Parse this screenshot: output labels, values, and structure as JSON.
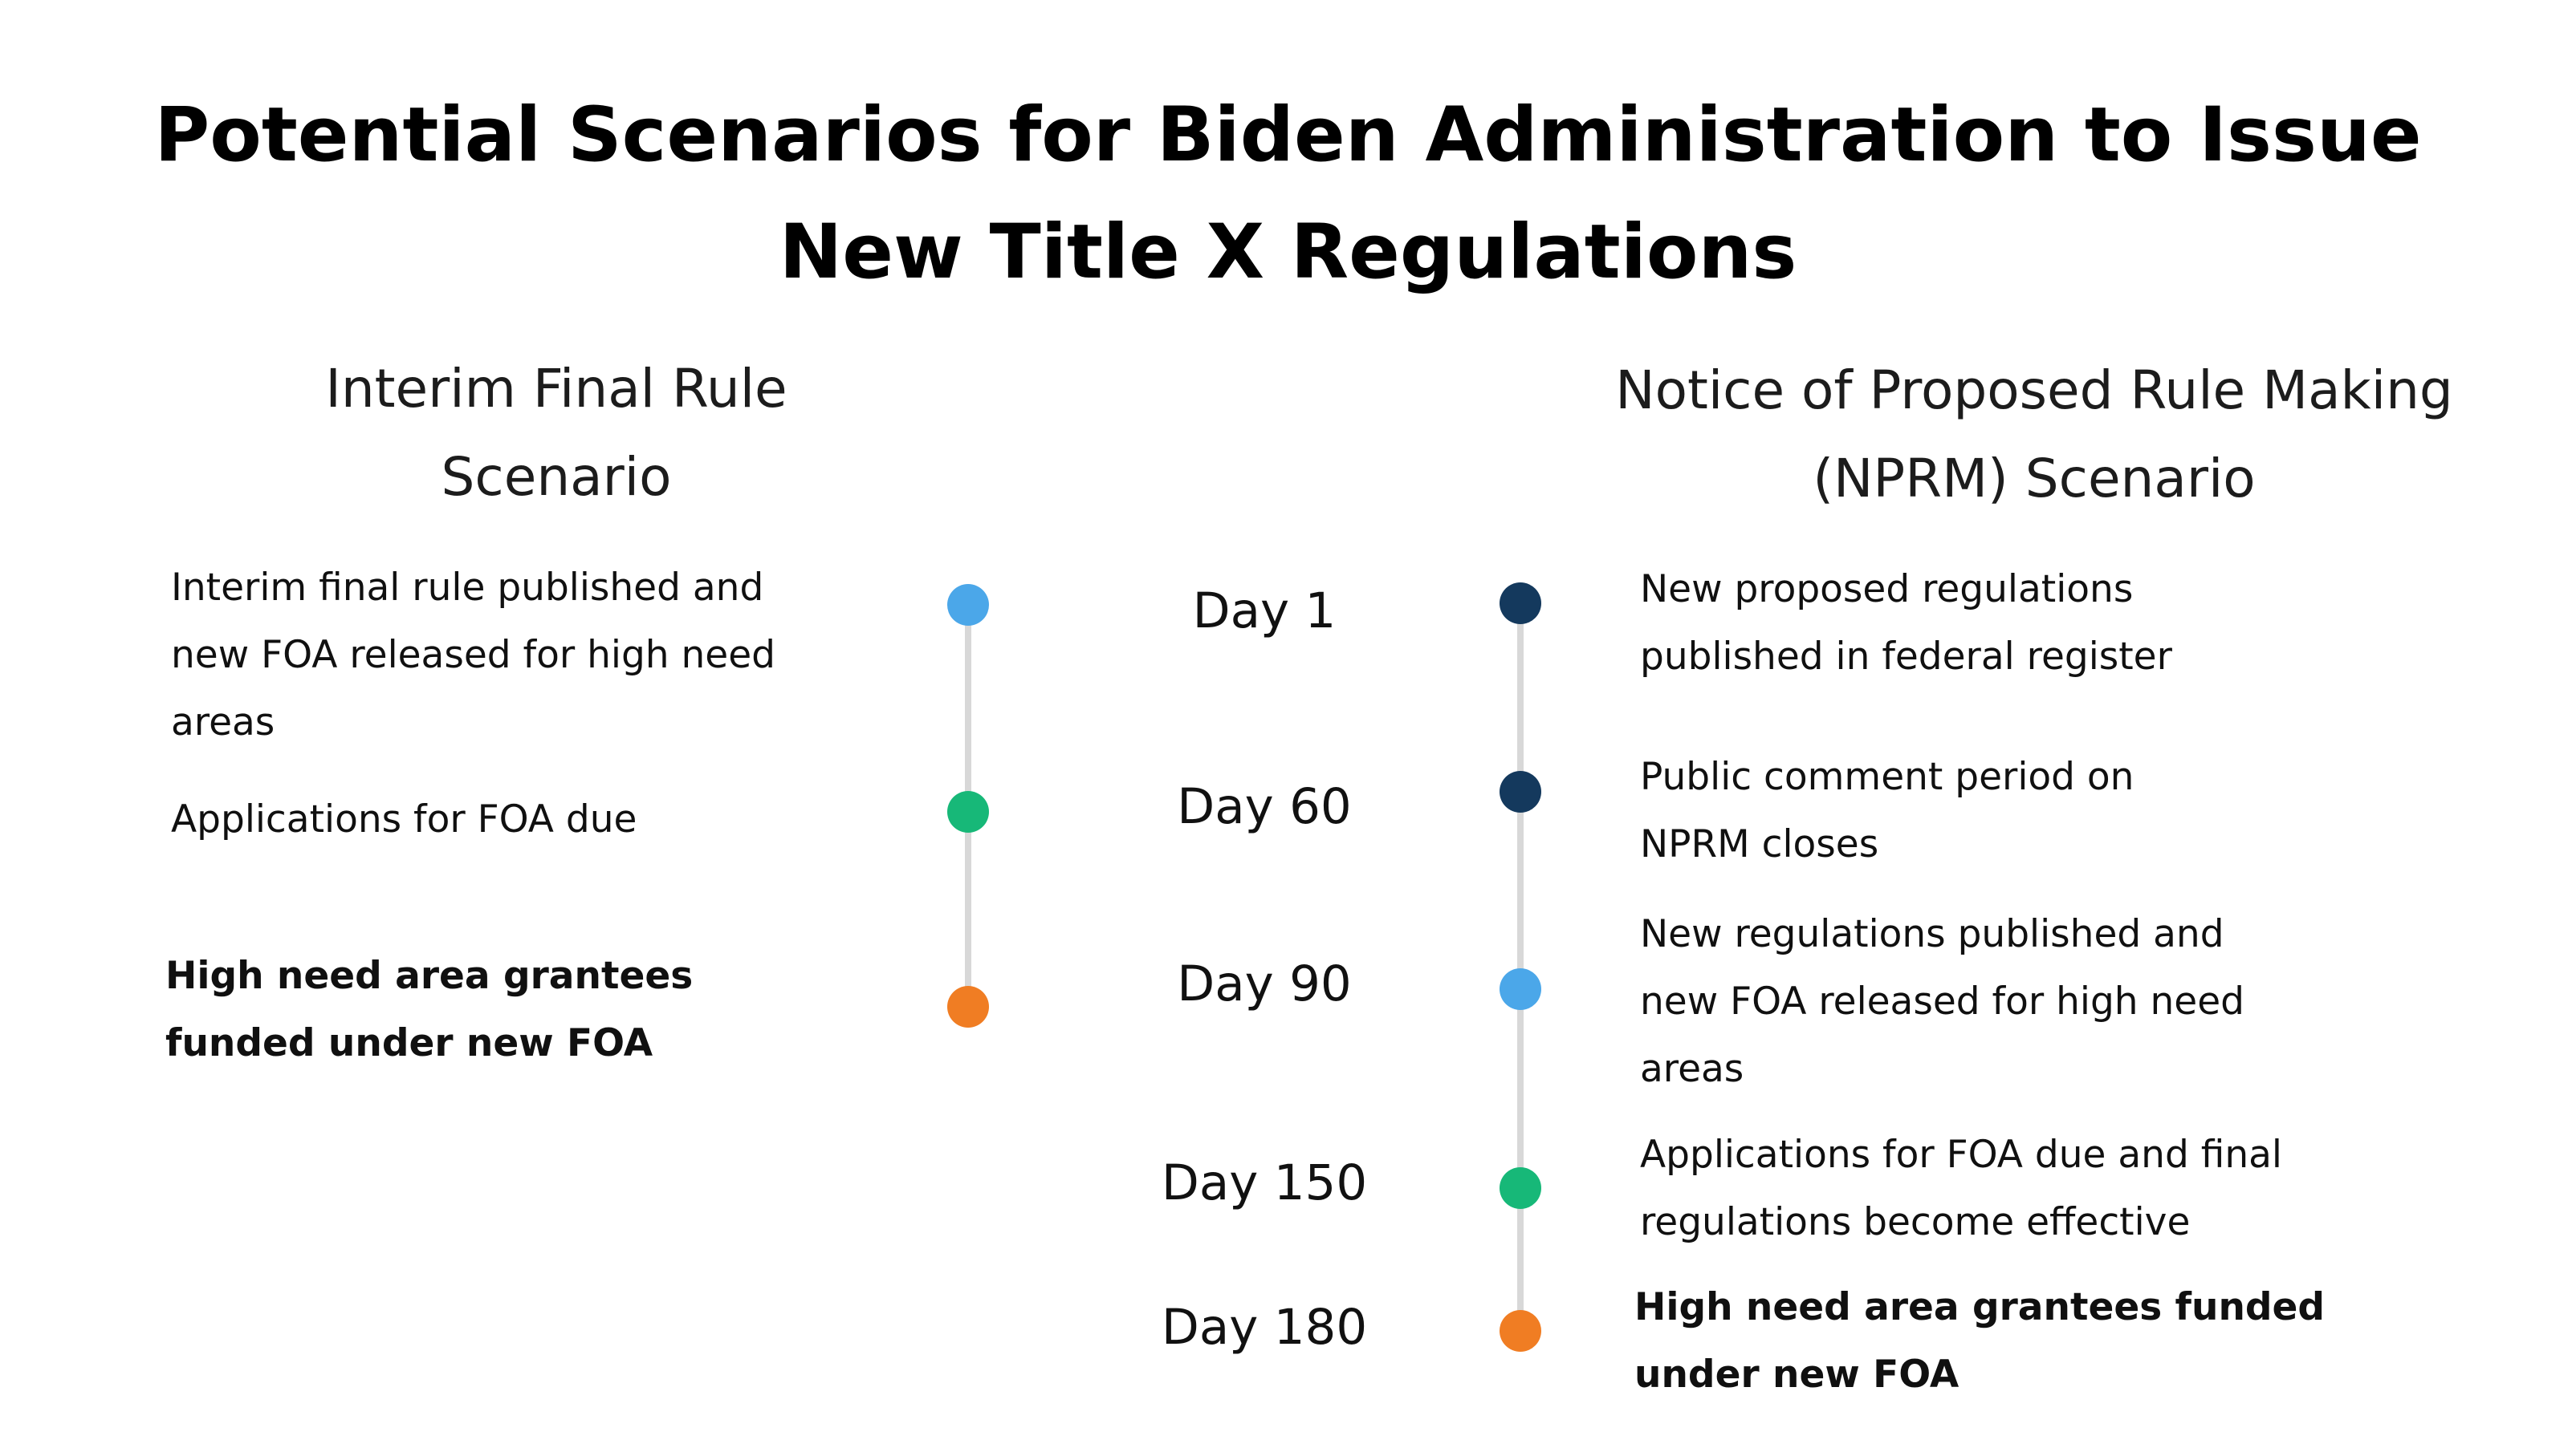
{
  "title": "Potential Scenarios for Biden Administration to Issue\nNew Title X Regulations",
  "colors": {
    "light_blue": "#4BA7E9",
    "green": "#17B878",
    "orange": "#F07D23",
    "navy": "#14395D",
    "timeline_line": "#D8D8D8",
    "text": "#101010"
  },
  "day_labels": [
    "Day 1",
    "Day 60",
    "Day 90",
    "Day 150",
    "Day 180"
  ],
  "left_timeline": {
    "heading": "Interim Final Rule\nScenario",
    "events": [
      {
        "day": "Day 1",
        "text": "Interim final rule published and\nnew FOA released for high need\nareas",
        "dot_color": "#4BA7E9",
        "bold": false
      },
      {
        "day": "Day 60",
        "text": "Applications for FOA due",
        "dot_color": "#17B878",
        "bold": false
      },
      {
        "day": "Day 90",
        "text": "High need area grantees\nfunded under new FOA",
        "dot_color": "#F07D23",
        "bold": true
      }
    ]
  },
  "right_timeline": {
    "heading": "Notice of Proposed Rule Making\n(NPRM) Scenario",
    "events": [
      {
        "day": "Day 1",
        "text": "New proposed regulations\npublished in federal register",
        "dot_color": "#14395D",
        "bold": false
      },
      {
        "day": "Day 60",
        "text": "Public comment period on\nNPRM closes",
        "dot_color": "#14395D",
        "bold": false
      },
      {
        "day": "Day 90",
        "text": "New regulations published and\nnew FOA released for high need\nareas",
        "dot_color": "#4BA7E9",
        "bold": false
      },
      {
        "day": "Day 150",
        "text": "Applications for FOA due and final\nregulations become effective",
        "dot_color": "#17B878",
        "bold": false
      },
      {
        "day": "Day 180",
        "text": "High need area grantees funded\nunder new FOA",
        "dot_color": "#F07D23",
        "bold": true
      }
    ]
  }
}
